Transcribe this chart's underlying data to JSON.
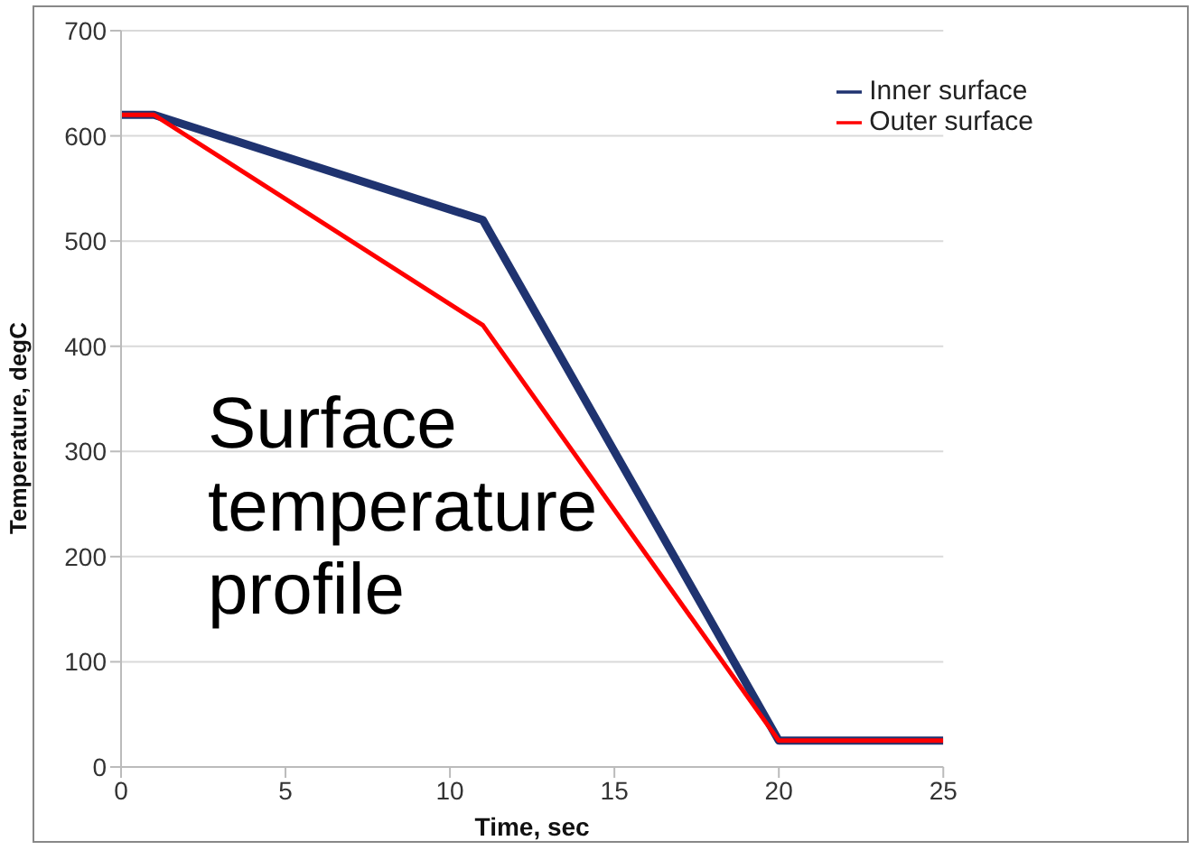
{
  "chart_data": {
    "type": "line",
    "xlabel": "Time, sec",
    "ylabel": "Temperature, degC",
    "annotations": [
      "Surface temperature profile"
    ],
    "series": [
      {
        "name": "Inner surface",
        "color": "#1f3370",
        "x": [
          0,
          1,
          11,
          20,
          25
        ],
        "values": [
          620,
          620,
          520,
          25,
          25
        ]
      },
      {
        "name": "Outer surface",
        "color": "#ff0000",
        "x": [
          0,
          1,
          11,
          20,
          25
        ],
        "values": [
          620,
          620,
          420,
          25,
          25
        ]
      }
    ],
    "xlim": [
      0,
      25
    ],
    "xticks": [
      0,
      5,
      10,
      15,
      20,
      25
    ],
    "ylim": [
      0,
      700
    ],
    "yticks": [
      0,
      100,
      200,
      300,
      400,
      500,
      600,
      700
    ],
    "grid": "y",
    "legend": "top right",
    "marker": "none",
    "line_style": "solid"
  }
}
